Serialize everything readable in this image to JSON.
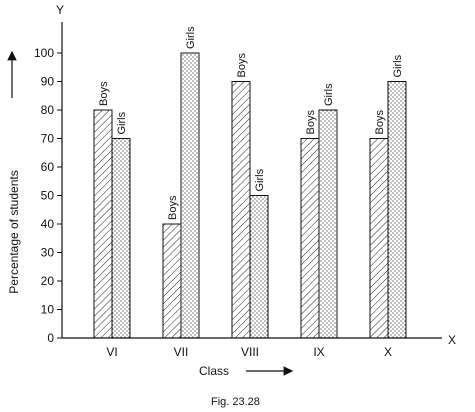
{
  "chart_data": {
    "type": "bar",
    "categories": [
      "VI",
      "VII",
      "VIII",
      "IX",
      "X"
    ],
    "series": [
      {
        "name": "Boys",
        "values": [
          80,
          40,
          90,
          70,
          70
        ],
        "pattern": "hatched"
      },
      {
        "name": "Girls",
        "values": [
          70,
          100,
          50,
          80,
          90
        ],
        "pattern": "dotted"
      }
    ],
    "ylim": [
      0,
      100
    ],
    "yticks": [
      0,
      10,
      20,
      30,
      40,
      50,
      60,
      70,
      80,
      90,
      100
    ],
    "xlabel": "Class",
    "ylabel": "Percentage of students",
    "x_axis_letter": "X",
    "y_axis_letter": "Y",
    "caption": "Fig. 23.28",
    "legend": "none (bars labelled directly)",
    "grid": false
  }
}
